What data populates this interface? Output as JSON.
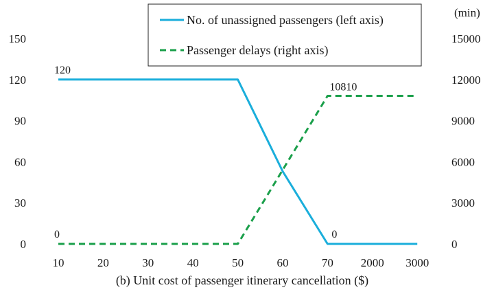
{
  "chart_data": {
    "type": "line",
    "title": "",
    "xlabel": "(b) Unit cost of  passenger itinerary cancellation ($)",
    "ylabel_left": "",
    "ylabel_right_unit": "(min)",
    "categories": [
      "10",
      "20",
      "30",
      "40",
      "50",
      "60",
      "70",
      "2000",
      "3000"
    ],
    "y_left_ticks": [
      "0",
      "30",
      "60",
      "90",
      "120",
      "150"
    ],
    "y_right_ticks": [
      "0",
      "3000",
      "6000",
      "9000",
      "12000",
      "15000"
    ],
    "ylim_left": [
      0,
      150
    ],
    "ylim_right": [
      0,
      15000
    ],
    "grid": false,
    "legend_position": "top-right",
    "series": [
      {
        "name": "No. of unassigned passengers (left axis)",
        "axis": "left",
        "style": "solid",
        "color": "#1aaedb",
        "values": [
          120,
          120,
          120,
          120,
          120,
          53,
          0,
          0,
          0
        ]
      },
      {
        "name": "Passenger delays (right axis)",
        "axis": "right",
        "style": "dashed",
        "color": "#1a9f4a",
        "values": [
          0,
          0,
          0,
          0,
          0,
          5400,
          10810,
          10810,
          10810
        ]
      }
    ],
    "annotations": [
      {
        "text": "120",
        "series": 0,
        "index": 0
      },
      {
        "text": "0",
        "series": 0,
        "index": 6
      },
      {
        "text": "0",
        "series": 1,
        "index": 0
      },
      {
        "text": "10810",
        "series": 1,
        "index": 6
      }
    ]
  }
}
